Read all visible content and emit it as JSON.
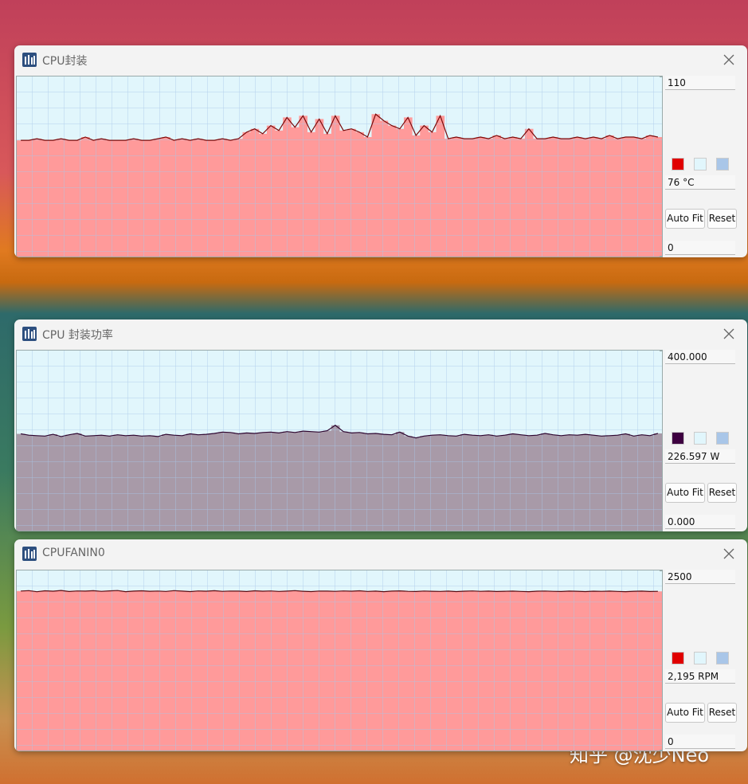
{
  "buttons": [
    "Auto Fit",
    "Reset"
  ],
  "watermark": "知乎 @沈少Neo",
  "chart_data": [
    {
      "type": "area",
      "title": "CPU封装",
      "color": "#ff9a9a",
      "line_color": "#7a0a0a",
      "swatch_color": "#e00000",
      "background": "#e1f6fc",
      "grid_color": "#a9c6e8",
      "ylim": [
        0,
        110
      ],
      "yticks": [
        0,
        110
      ],
      "current_label": "76 °C",
      "values": [
        71,
        71,
        72,
        71,
        71,
        72,
        71,
        71,
        73,
        71,
        72,
        71,
        71,
        71,
        72,
        71,
        71,
        72,
        73,
        71,
        72,
        71,
        72,
        71,
        71,
        72,
        71,
        72,
        76,
        78,
        75,
        80,
        77,
        85,
        79,
        86,
        76,
        84,
        75,
        86,
        77,
        78,
        76,
        73,
        87,
        83,
        80,
        78,
        85,
        74,
        80,
        76,
        86,
        72,
        73,
        72,
        72,
        73,
        72,
        74,
        72,
        73,
        72,
        78,
        72,
        72,
        73,
        72,
        72,
        73,
        72,
        73,
        72,
        74,
        72,
        73,
        73,
        72,
        74,
        73
      ]
    },
    {
      "type": "area",
      "title": "CPU 封装功率",
      "color": "#a89aa8",
      "line_color": "#2e0630",
      "swatch_color": "#3d0040",
      "background": "#e1f6fc",
      "grid_color": "#a9c6e8",
      "ylim": [
        0,
        400
      ],
      "yticks": [
        {
          "value": 0,
          "label": "0.000"
        },
        {
          "value": 400,
          "label": "400.000"
        }
      ],
      "current_label": "226.597 W",
      "values": [
        215,
        212,
        211,
        210,
        214,
        209,
        213,
        216,
        210,
        211,
        212,
        210,
        213,
        211,
        212,
        210,
        211,
        209,
        214,
        212,
        211,
        215,
        213,
        214,
        216,
        219,
        218,
        215,
        217,
        216,
        218,
        219,
        217,
        220,
        218,
        221,
        220,
        219,
        222,
        234,
        220,
        217,
        218,
        215,
        216,
        214,
        213,
        219,
        210,
        206,
        210,
        212,
        213,
        211,
        210,
        214,
        212,
        211,
        213,
        210,
        212,
        215,
        213,
        211,
        212,
        216,
        213,
        211,
        213,
        212,
        214,
        212,
        210,
        211,
        212,
        215,
        210,
        213,
        211,
        216
      ]
    },
    {
      "type": "area",
      "title": "CPUFANIN0",
      "color": "#ff9a9a",
      "line_color": "#5a0a10",
      "swatch_color": "#e00000",
      "background": "#e1f6fc",
      "grid_color": "#a9c6e8",
      "ylim": [
        0,
        2500
      ],
      "yticks": [
        0,
        2500
      ],
      "current_label": "2,195 RPM",
      "values": [
        2215,
        2220,
        2205,
        2218,
        2212,
        2222,
        2208,
        2216,
        2214,
        2219,
        2210,
        2217,
        2221,
        2206,
        2213,
        2218,
        2211,
        2215,
        2209,
        2220,
        2214,
        2207,
        2216,
        2212,
        2219,
        2210,
        2215,
        2213,
        2208,
        2218,
        2212,
        2216,
        2209,
        2214,
        2220,
        2211,
        2207,
        2215,
        2213,
        2210,
        2216,
        2212,
        2218,
        2209,
        2214,
        2206,
        2213,
        2217,
        2210,
        2208,
        2215,
        2211,
        2209,
        2214,
        2207,
        2212,
        2216,
        2210,
        2213,
        2208,
        2211,
        2214,
        2209,
        2206,
        2212,
        2215,
        2210,
        2208,
        2213,
        2211,
        2207,
        2212,
        2210,
        2214,
        2209,
        2206,
        2211,
        2213,
        2208,
        2210
      ]
    }
  ]
}
